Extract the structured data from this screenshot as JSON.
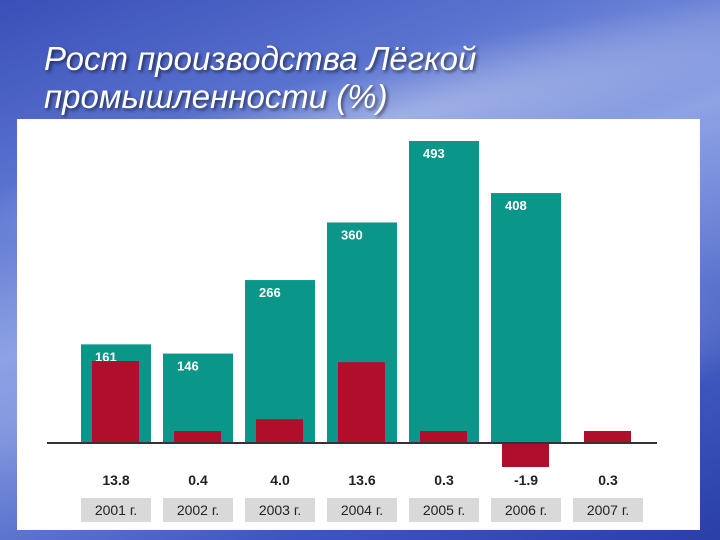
{
  "title_lines": [
    "Рост производства Лёгкой",
    "промышленности (%)"
  ],
  "colors": {
    "teal": "#0a9688",
    "red": "#b10e2b",
    "year_box": "#d9d9d9"
  },
  "chart_data": {
    "type": "bar",
    "title": "Рост производства Лёгкой промышленности (%)",
    "categories": [
      "2001 г.",
      "2002 г.",
      "2003 г.",
      "2004 г.",
      "2005 г.",
      "2006 г.",
      "2007 г."
    ],
    "series": [
      {
        "values": [
          161,
          146,
          266,
          360,
          493,
          408,
          null
        ],
        "labels": [
          "161",
          "146",
          "266",
          "360",
          "493",
          "408",
          ""
        ]
      },
      {
        "values": [
          13.8,
          0.4,
          4.0,
          13.6,
          0.3,
          -1.9,
          0.3
        ],
        "labels": [
          "13.8",
          "0.4",
          "4.0",
          "13.6",
          "0.3",
          "-1.9",
          "0.3"
        ]
      }
    ]
  }
}
